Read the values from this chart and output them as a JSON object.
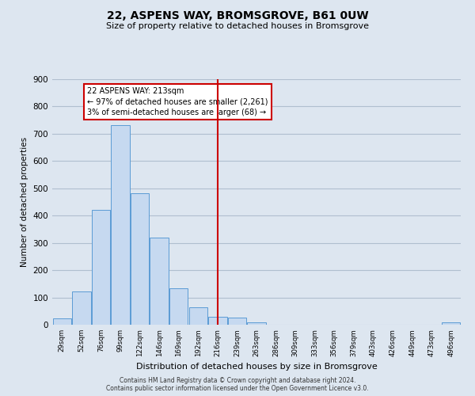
{
  "title": "22, ASPENS WAY, BROMSGROVE, B61 0UW",
  "subtitle": "Size of property relative to detached houses in Bromsgrove",
  "xlabel": "Distribution of detached houses by size in Bromsgrove",
  "ylabel": "Number of detached properties",
  "bar_labels": [
    "29sqm",
    "52sqm",
    "76sqm",
    "99sqm",
    "122sqm",
    "146sqm",
    "169sqm",
    "192sqm",
    "216sqm",
    "239sqm",
    "263sqm",
    "286sqm",
    "309sqm",
    "333sqm",
    "356sqm",
    "379sqm",
    "403sqm",
    "426sqm",
    "449sqm",
    "473sqm",
    "496sqm"
  ],
  "bar_values": [
    22,
    122,
    420,
    733,
    483,
    318,
    133,
    65,
    30,
    25,
    10,
    0,
    0,
    0,
    0,
    0,
    0,
    0,
    0,
    0,
    8
  ],
  "bar_color": "#c6d9f0",
  "bar_edge_color": "#5b9bd5",
  "vline_index": 8,
  "vline_color": "#cc0000",
  "annotation_title": "22 ASPENS WAY: 213sqm",
  "annotation_line1": "← 97% of detached houses are smaller (2,261)",
  "annotation_line2": "3% of semi-detached houses are larger (68) →",
  "annotation_box_facecolor": "#ffffff",
  "annotation_box_edgecolor": "#cc0000",
  "ylim": [
    0,
    900
  ],
  "yticks": [
    0,
    100,
    200,
    300,
    400,
    500,
    600,
    700,
    800,
    900
  ],
  "background_color": "#dde6f0",
  "grid_color": "#b0bfcf",
  "footer_line1": "Contains HM Land Registry data © Crown copyright and database right 2024.",
  "footer_line2": "Contains public sector information licensed under the Open Government Licence v3.0."
}
